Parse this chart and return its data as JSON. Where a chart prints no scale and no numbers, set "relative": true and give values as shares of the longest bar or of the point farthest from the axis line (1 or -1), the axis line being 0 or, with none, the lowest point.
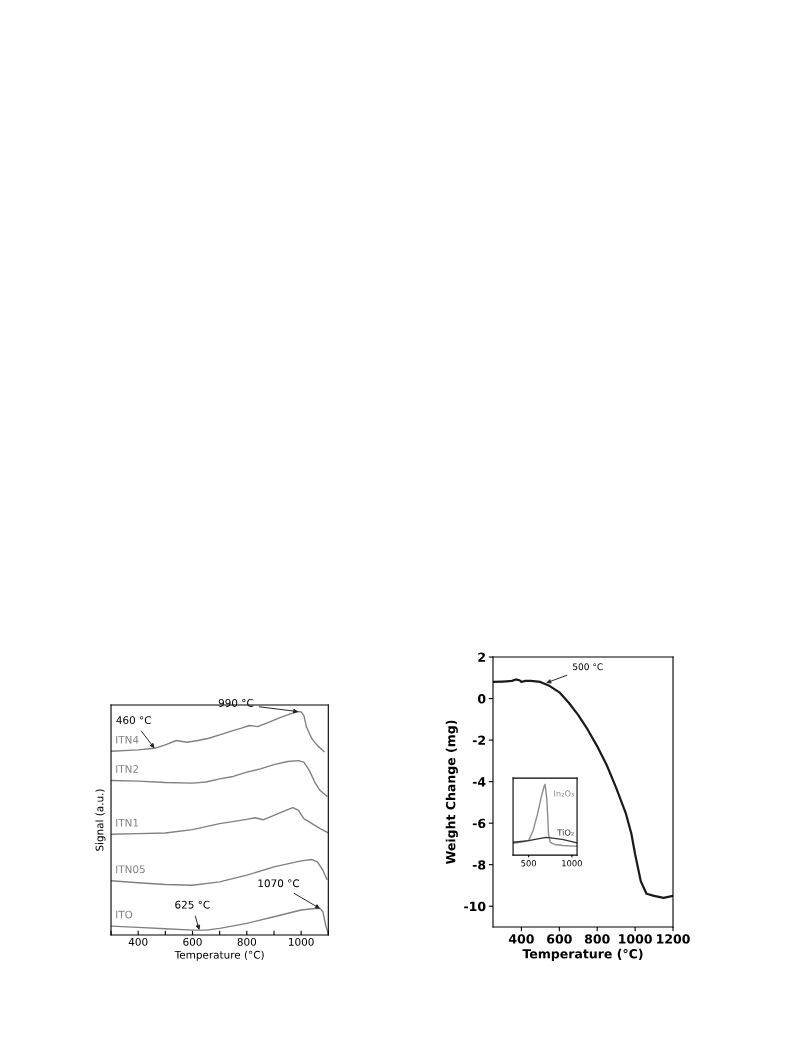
{
  "chart_data": [
    {
      "type": "line",
      "xlabel": "Temperature (°C)",
      "ylabel": "Signal (a.u.)",
      "relative": true,
      "tick_labels": "x",
      "xlim": [
        300,
        1100
      ],
      "xticks": [
        {
          "value": 300,
          "label": null
        },
        400,
        {
          "value": 500,
          "label": null
        },
        600,
        {
          "value": 700,
          "label": null
        },
        800,
        {
          "value": 900,
          "label": null
        },
        1000,
        {
          "value": 1100,
          "label": null
        }
      ],
      "grid": false,
      "legend": false,
      "series": [
        {
          "name": "ITN4",
          "color": "#808080",
          "x": [
            300,
            400,
            460,
            500,
            540,
            580,
            620,
            660,
            700,
            740,
            780,
            810,
            840,
            880,
            920,
            960,
            990,
            1000,
            1010,
            1020,
            1040,
            1060,
            1085
          ],
          "values": [
            0.823,
            0.829,
            0.836,
            0.851,
            0.871,
            0.863,
            0.871,
            0.881,
            0.896,
            0.912,
            0.926,
            0.938,
            0.933,
            0.952,
            0.972,
            0.99,
            1.0,
            0.999,
            0.982,
            0.93,
            0.878,
            0.848,
            0.821
          ]
        },
        {
          "name": "ITN2",
          "color": "#808080",
          "x": [
            300,
            400,
            500,
            600,
            650,
            700,
            750,
            800,
            850,
            900,
            950,
            990,
            1010,
            1030,
            1050,
            1070,
            1095
          ],
          "values": [
            0.692,
            0.689,
            0.683,
            0.68,
            0.685,
            0.699,
            0.71,
            0.729,
            0.744,
            0.763,
            0.777,
            0.781,
            0.774,
            0.737,
            0.685,
            0.647,
            0.621
          ]
        },
        {
          "name": "ITN1",
          "color": "#808080",
          "x": [
            300,
            400,
            500,
            600,
            700,
            800,
            830,
            860,
            900,
            950,
            970,
            990,
            1010,
            1040,
            1070,
            1100
          ],
          "values": [
            0.451,
            0.454,
            0.457,
            0.472,
            0.499,
            0.518,
            0.525,
            0.516,
            0.536,
            0.561,
            0.57,
            0.558,
            0.521,
            0.499,
            0.476,
            0.457
          ]
        },
        {
          "name": "ITN05",
          "color": "#808080",
          "x": [
            300,
            400,
            500,
            600,
            700,
            800,
            900,
            1000,
            1040,
            1060,
            1080,
            1095
          ],
          "values": [
            0.243,
            0.234,
            0.226,
            0.223,
            0.238,
            0.268,
            0.305,
            0.332,
            0.338,
            0.327,
            0.29,
            0.249
          ]
        },
        {
          "name": "ITO",
          "color": "#808080",
          "x": [
            300,
            400,
            500,
            600,
            650,
            700,
            800,
            900,
            1000,
            1050,
            1070,
            1080,
            1090,
            1100
          ],
          "values": [
            0.04,
            0.034,
            0.028,
            0.022,
            0.022,
            0.03,
            0.052,
            0.082,
            0.112,
            0.119,
            0.118,
            0.104,
            0.045,
            0.007
          ]
        }
      ],
      "annotations": [
        {
          "text": "990 °C",
          "x": 990,
          "y": 1.0
        },
        {
          "text": "460 °C",
          "x": 460,
          "y": 0.836
        },
        {
          "text": "1070 °C",
          "x": 1070,
          "y": 0.118
        },
        {
          "text": "625 °C",
          "x": 625,
          "y": 0.022
        }
      ]
    },
    {
      "type": "line",
      "xlabel": "Temperature (°C)",
      "ylabel": "Weight Change (mg)",
      "xlim": [
        250,
        1200
      ],
      "xticks": [
        400,
        600,
        800,
        1000,
        1200
      ],
      "ylim": [
        -11,
        2
      ],
      "yticks": [
        -10,
        -8,
        -6,
        -4,
        -2,
        0,
        2
      ],
      "grid": false,
      "legend": false,
      "series": [
        {
          "color": "#1a1a1a",
          "x": [
            250,
            300,
            350,
            370,
            390,
            400,
            420,
            450,
            500,
            550,
            600,
            650,
            700,
            750,
            800,
            850,
            900,
            950,
            980,
            1000,
            1030,
            1060,
            1100,
            1150,
            1200
          ],
          "values": [
            0.8,
            0.82,
            0.85,
            0.92,
            0.88,
            0.8,
            0.85,
            0.85,
            0.8,
            0.6,
            0.3,
            -0.2,
            -0.8,
            -1.5,
            -2.3,
            -3.2,
            -4.3,
            -5.5,
            -6.5,
            -7.5,
            -8.8,
            -9.4,
            -9.5,
            -9.6,
            -9.5
          ]
        }
      ],
      "annotations": [
        {
          "text": "500 °C",
          "x": 530,
          "y": 0.75
        }
      ]
    },
    {
      "type": "line",
      "relative": true,
      "tick_labels": "x",
      "xlim": [
        320,
        1060
      ],
      "xticks": [
        500,
        1000
      ],
      "grid": false,
      "legend": false,
      "series": [
        {
          "name": "In₂O₃",
          "color": "#8c8c8c",
          "x": [
            320,
            400,
            450,
            500,
            550,
            600,
            650,
            680,
            690,
            710,
            720,
            730,
            750,
            800,
            900,
            1000,
            1060
          ],
          "values": [
            0.168,
            0.182,
            0.191,
            0.205,
            0.341,
            0.568,
            0.841,
            0.977,
            1.0,
            0.795,
            0.568,
            0.295,
            0.182,
            0.15,
            0.136,
            0.127,
            0.127
          ]
        },
        {
          "name": "TiO₂",
          "color": "#333333",
          "x": [
            320,
            500,
            700,
            800,
            900,
            1000,
            1060
          ],
          "values": [
            0.182,
            0.205,
            0.25,
            0.236,
            0.218,
            0.191,
            0.173
          ]
        }
      ]
    }
  ]
}
